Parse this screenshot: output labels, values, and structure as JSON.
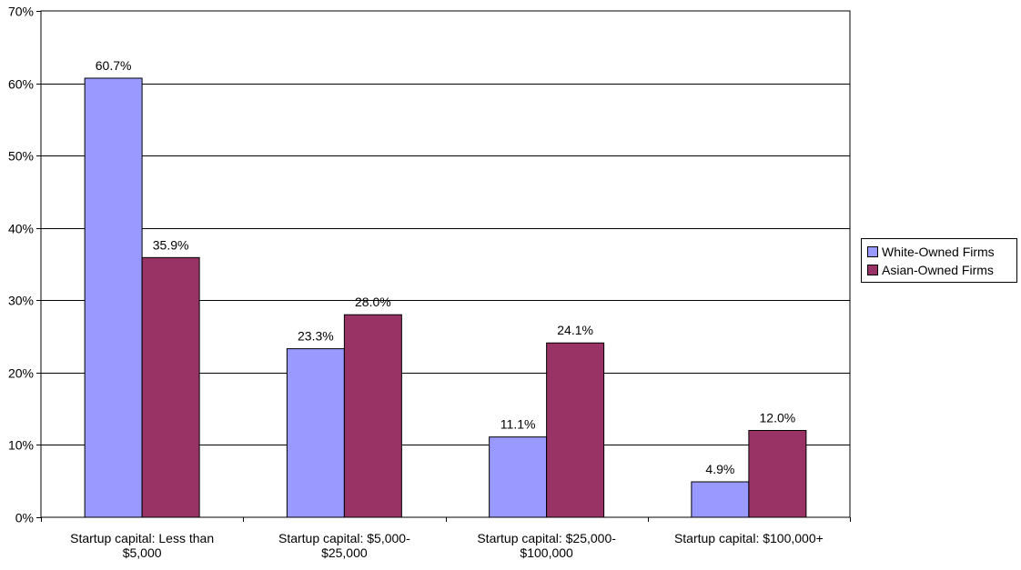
{
  "chart_data": {
    "type": "bar",
    "categories": [
      [
        "Startup capital: Less than",
        "$5,000"
      ],
      [
        "Startup capital: $5,000-",
        "$25,000"
      ],
      [
        "Startup capital: $25,000-",
        "$100,000"
      ],
      [
        "Startup capital: $100,000+"
      ]
    ],
    "series": [
      {
        "name": "White-Owned Firms",
        "values": [
          60.7,
          23.3,
          11.1,
          4.9
        ],
        "color": "#9999FF",
        "labels": [
          "60.7%",
          "23.3%",
          "11.1%",
          "4.9%"
        ]
      },
      {
        "name": "Asian-Owned Firms",
        "values": [
          35.9,
          28.0,
          24.1,
          12.0
        ],
        "color": "#993366",
        "labels": [
          "35.9%",
          "28.0%",
          "24.1%",
          "12.0%"
        ]
      }
    ],
    "y_ticks": [
      0,
      10,
      20,
      30,
      40,
      50,
      60,
      70
    ],
    "y_tick_labels": [
      "0%",
      "10%",
      "20%",
      "30%",
      "40%",
      "50%",
      "60%",
      "70%"
    ],
    "ylim": [
      0,
      70
    ],
    "grid": true,
    "legend_position": "right",
    "title": "",
    "xlabel": "",
    "ylabel": ""
  }
}
